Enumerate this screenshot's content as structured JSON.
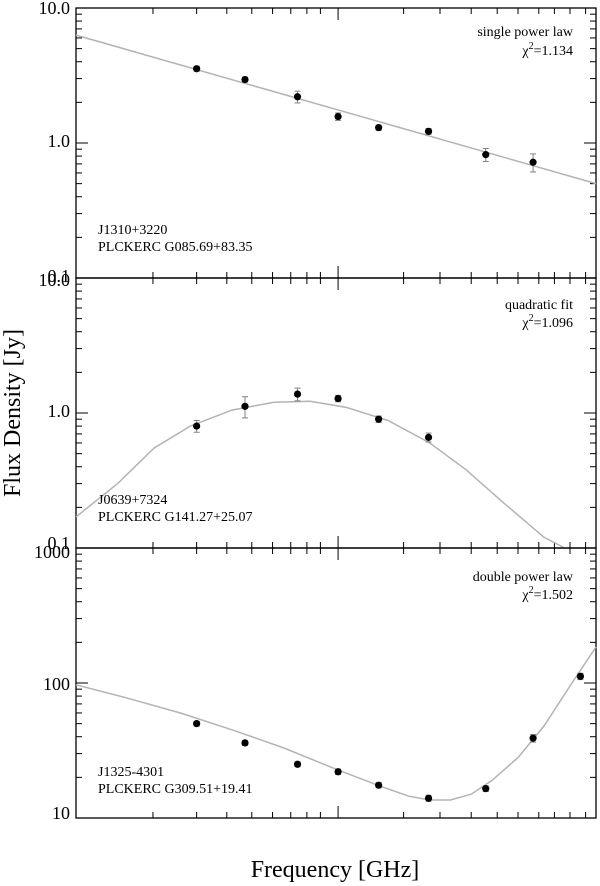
{
  "figure": {
    "xlabel": "Frequency [GHz]",
    "ylabel": "Flux Density [Jy]"
  },
  "chart_data": [
    {
      "type": "scatter",
      "panel": "top",
      "x_scale": "log",
      "y_scale": "log",
      "ylim": [
        0.1,
        10.0
      ],
      "y_ticks": [
        "0.1",
        "1.0",
        "10.0"
      ],
      "y_tick_values": [
        0.1,
        1.0,
        10.0
      ],
      "fit_label": "single power law",
      "chi2_label": "χ",
      "chi2_sup": "2",
      "chi2_value": "=1.134",
      "source_name": "J1310+3220",
      "catalog_name": "PLCKERC G085.69+83.35",
      "colors": {
        "points": "#000000",
        "fit": "#b3b3b3",
        "errorbars": "#808080"
      },
      "points": [
        {
          "x_frac": 0.232,
          "y": 3.55,
          "err": 0.15
        },
        {
          "x_frac": 0.325,
          "y": 2.95,
          "err": 0.12
        },
        {
          "x_frac": 0.426,
          "y": 2.2,
          "err": 0.22
        },
        {
          "x_frac": 0.504,
          "y": 1.57,
          "err": 0.1
        },
        {
          "x_frac": 0.582,
          "y": 1.3,
          "err": 0.06
        },
        {
          "x_frac": 0.678,
          "y": 1.22,
          "err": 0.06
        },
        {
          "x_frac": 0.788,
          "y": 0.82,
          "err": 0.09
        },
        {
          "x_frac": 0.879,
          "y": 0.72,
          "err": 0.11
        }
      ],
      "fit": {
        "x_frac": [
          0.0,
          1.0
        ],
        "y": [
          6.3,
          0.5
        ]
      }
    },
    {
      "type": "scatter",
      "panel": "middle",
      "x_scale": "log",
      "y_scale": "log",
      "ylim": [
        0.1,
        10.0
      ],
      "y_ticks": [
        "0.1",
        "1.0",
        "10.0"
      ],
      "y_tick_values": [
        0.1,
        1.0,
        10.0
      ],
      "fit_label": "quadratic fit",
      "chi2_label": "χ",
      "chi2_sup": "2",
      "chi2_value": "=1.096",
      "source_name": "J0639+7324",
      "catalog_name": "PLCKERC G141.27+25.07",
      "colors": {
        "points": "#000000",
        "fit": "#b3b3b3",
        "errorbars": "#808080"
      },
      "points": [
        {
          "x_frac": 0.232,
          "y": 0.8,
          "err": 0.08
        },
        {
          "x_frac": 0.325,
          "y": 1.12,
          "err": 0.2
        },
        {
          "x_frac": 0.426,
          "y": 1.38,
          "err": 0.15
        },
        {
          "x_frac": 0.504,
          "y": 1.28,
          "err": 0.07
        },
        {
          "x_frac": 0.582,
          "y": 0.9,
          "err": 0.05
        },
        {
          "x_frac": 0.678,
          "y": 0.66,
          "err": 0.05
        }
      ],
      "fit": {
        "x_frac": [
          0.0,
          0.08,
          0.15,
          0.22,
          0.3,
          0.38,
          0.45,
          0.52,
          0.6,
          0.68,
          0.75,
          0.82,
          0.9,
          0.94
        ],
        "y": [
          0.17,
          0.3,
          0.55,
          0.8,
          1.05,
          1.2,
          1.22,
          1.1,
          0.88,
          0.6,
          0.38,
          0.22,
          0.12,
          0.1
        ]
      }
    },
    {
      "type": "scatter",
      "panel": "bottom",
      "x_scale": "log",
      "y_scale": "log",
      "ylim": [
        10,
        1000
      ],
      "y_ticks": [
        "10",
        "100",
        "1000"
      ],
      "y_tick_values": [
        10,
        100,
        1000
      ],
      "fit_label": "double power law",
      "chi2_label": "χ",
      "chi2_sup": "2",
      "chi2_value": "=1.502",
      "source_name": "J1325-4301",
      "catalog_name": "PLCKERC G309.51+19.41",
      "colors": {
        "points": "#000000",
        "fit": "#b3b3b3",
        "errorbars": "#808080"
      },
      "points": [
        {
          "x_frac": 0.232,
          "y": 50,
          "err": 2
        },
        {
          "x_frac": 0.325,
          "y": 36,
          "err": 1.5
        },
        {
          "x_frac": 0.426,
          "y": 25,
          "err": 1
        },
        {
          "x_frac": 0.504,
          "y": 22,
          "err": 1
        },
        {
          "x_frac": 0.582,
          "y": 17.5,
          "err": 0.8
        },
        {
          "x_frac": 0.678,
          "y": 14,
          "err": 0.7
        },
        {
          "x_frac": 0.788,
          "y": 16.5,
          "err": 0.8
        },
        {
          "x_frac": 0.879,
          "y": 39,
          "err": 2.5
        },
        {
          "x_frac": 0.97,
          "y": 112,
          "err": 6
        }
      ],
      "fit": {
        "x_frac": [
          0.0,
          0.1,
          0.2,
          0.3,
          0.4,
          0.5,
          0.58,
          0.64,
          0.68,
          0.72,
          0.76,
          0.8,
          0.85,
          0.9,
          0.95,
          1.0
        ],
        "y": [
          97,
          77,
          60,
          45,
          33,
          23,
          17.5,
          14.5,
          13.6,
          13.6,
          15,
          19,
          28,
          48,
          95,
          185
        ]
      }
    }
  ]
}
